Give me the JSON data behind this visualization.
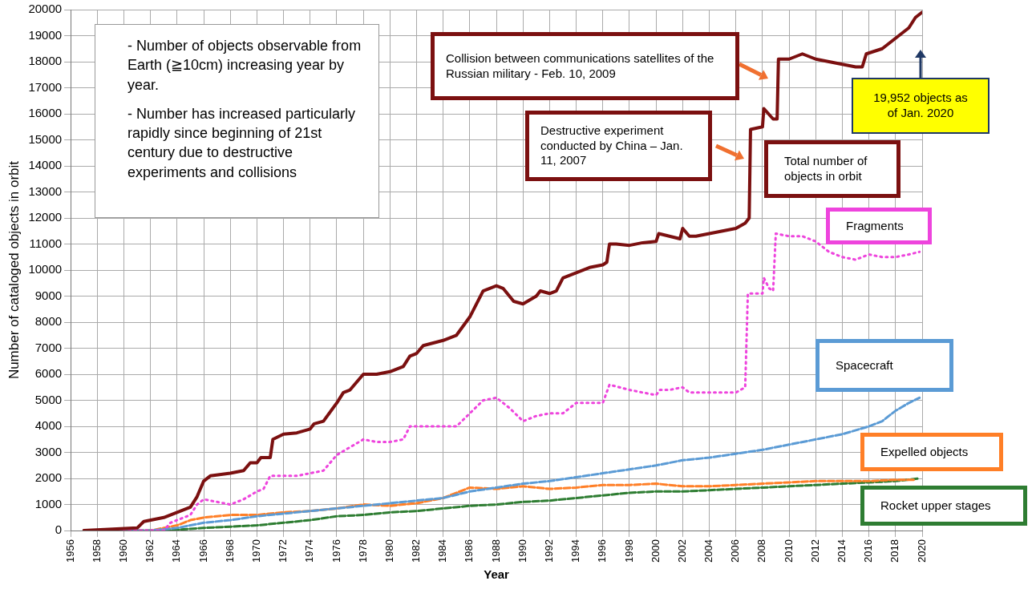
{
  "chart_data": {
    "type": "line",
    "xlabel": "Year",
    "ylabel": "Number of cataloged objects in orbit",
    "xlim": [
      1956,
      2020
    ],
    "xticks": [
      1956,
      1958,
      1960,
      1962,
      1964,
      1966,
      1968,
      1970,
      1972,
      1974,
      1976,
      1978,
      1980,
      1982,
      1984,
      1986,
      1988,
      1990,
      1992,
      1994,
      1996,
      1998,
      2000,
      2002,
      2004,
      2006,
      2008,
      2010,
      2012,
      2014,
      2016,
      2018,
      2020
    ],
    "ylim": [
      0,
      20000
    ],
    "yticks": [
      0,
      1000,
      2000,
      3000,
      4000,
      5000,
      6000,
      7000,
      8000,
      9000,
      10000,
      11000,
      12000,
      13000,
      14000,
      15000,
      16000,
      17000,
      18000,
      19000,
      20000
    ],
    "grid": true,
    "legend": false,
    "marker": "none",
    "series": [
      {
        "name": "Total number of objects in orbit",
        "color": "#7b1010",
        "line_style": "solid",
        "x": [
          1957,
          1961,
          1961.5,
          1963,
          1963.5,
          1965,
          1965.5,
          1966,
          1966.5,
          1968,
          1969,
          1969.5,
          1970,
          1970.3,
          1971,
          1971.2,
          1972,
          1973,
          1974,
          1974.3,
          1975,
          1976,
          1976.5,
          1977,
          1978,
          1979,
          1980,
          1981,
          1981.5,
          1982,
          1982.5,
          1984,
          1985,
          1986,
          1986.3,
          1987,
          1988,
          1988.5,
          1989.3,
          1990,
          1991,
          1991.3,
          1992,
          1992.5,
          1993,
          1994,
          1995,
          1996,
          1996.3,
          1996.5,
          1997,
          1998,
          1999,
          2000,
          2000.2,
          2001,
          2001.8,
          2002,
          2002.5,
          2003,
          2004,
          2005,
          2006,
          2006.7,
          2007,
          2007.1,
          2008,
          2008.1,
          2008.8,
          2009.1,
          2009.2,
          2010,
          2011,
          2012,
          2013,
          2014,
          2015,
          2015.5,
          2015.8,
          2017,
          2018,
          2019,
          2019.5,
          2020
        ],
        "values": [
          0,
          100,
          350,
          500,
          600,
          900,
          1300,
          1900,
          2100,
          2200,
          2300,
          2600,
          2600,
          2800,
          2800,
          3500,
          3700,
          3750,
          3900,
          4100,
          4200,
          4900,
          5300,
          5400,
          6000,
          6000,
          6100,
          6300,
          6700,
          6800,
          7100,
          7300,
          7500,
          8200,
          8500,
          9200,
          9400,
          9300,
          8800,
          8700,
          9000,
          9200,
          9100,
          9200,
          9700,
          9900,
          10100,
          10200,
          10300,
          11000,
          11000,
          10950,
          11050,
          11100,
          11400,
          11300,
          11200,
          11600,
          11300,
          11300,
          11400,
          11500,
          11600,
          11800,
          12000,
          15400,
          15500,
          16200,
          15800,
          15800,
          18100,
          18100,
          18300,
          18100,
          18000,
          17900,
          17800,
          17800,
          18300,
          18500,
          18900,
          19300,
          19700,
          19900
        ]
      },
      {
        "name": "Fragments",
        "color": "#ee44dd",
        "line_style": "dotted",
        "x": [
          1957,
          1963,
          1963.5,
          1965,
          1965.5,
          1966,
          1967,
          1968,
          1969,
          1970,
          1970.5,
          1971,
          1972,
          1973,
          1974,
          1975,
          1976,
          1977,
          1978,
          1979,
          1980,
          1981,
          1981.5,
          1982,
          1985,
          1986,
          1987,
          1988,
          1989,
          1990,
          1991,
          1992,
          1993,
          1994,
          1996,
          1996.5,
          1998,
          2000,
          2000.3,
          2001,
          2002,
          2002.5,
          2004,
          2006,
          2006.7,
          2006.9,
          2008,
          2008.1,
          2008.5,
          2008.8,
          2009,
          2010,
          2011,
          2012,
          2013,
          2014,
          2015,
          2016,
          2017,
          2018,
          2019,
          2019.8
        ],
        "values": [
          0,
          0,
          300,
          600,
          1000,
          1200,
          1100,
          1000,
          1200,
          1500,
          1600,
          2100,
          2100,
          2100,
          2200,
          2300,
          2900,
          3200,
          3500,
          3400,
          3400,
          3500,
          4000,
          4000,
          4000,
          4500,
          5000,
          5100,
          4700,
          4200,
          4400,
          4500,
          4500,
          4900,
          4900,
          5600,
          5400,
          5200,
          5400,
          5400,
          5500,
          5300,
          5300,
          5300,
          5500,
          9100,
          9100,
          9700,
          9300,
          9200,
          11400,
          11300,
          11300,
          11100,
          10700,
          10500,
          10400,
          10600,
          10500,
          10500,
          10600,
          10700
        ]
      },
      {
        "name": "Spacecraft",
        "color": "#5b9bd5",
        "line_style": "dashed",
        "x": [
          1957,
          1962,
          1964,
          1966,
          1968,
          1970,
          1972,
          1974,
          1976,
          1978,
          1980,
          1982,
          1984,
          1986,
          1988,
          1990,
          1992,
          1994,
          1996,
          1998,
          2000,
          2002,
          2004,
          2006,
          2008,
          2010,
          2012,
          2014,
          2016,
          2017,
          2018,
          2019,
          2019.8
        ],
        "values": [
          0,
          0,
          100,
          300,
          400,
          550,
          650,
          750,
          850,
          950,
          1050,
          1150,
          1250,
          1500,
          1650,
          1800,
          1900,
          2050,
          2200,
          2350,
          2500,
          2700,
          2800,
          2950,
          3100,
          3300,
          3500,
          3700,
          4000,
          4200,
          4600,
          4900,
          5100
        ]
      },
      {
        "name": "Expelled objects",
        "color": "#ff7f27",
        "line_style": "dashed",
        "x": [
          1957,
          1962,
          1964,
          1965,
          1966,
          1968,
          1970,
          1972,
          1974,
          1976,
          1978,
          1980,
          1982,
          1984,
          1986,
          1988,
          1990,
          1992,
          1994,
          1996,
          1998,
          2000,
          2002,
          2004,
          2006,
          2008,
          2010,
          2012,
          2014,
          2016,
          2018,
          2019.5
        ],
        "values": [
          0,
          0,
          200,
          400,
          500,
          600,
          600,
          700,
          750,
          850,
          1000,
          950,
          1050,
          1250,
          1650,
          1600,
          1700,
          1600,
          1650,
          1750,
          1750,
          1800,
          1700,
          1700,
          1750,
          1800,
          1850,
          1900,
          1900,
          1900,
          1950,
          1950
        ]
      },
      {
        "name": "Rocket upper stages",
        "color": "#2e7d32",
        "line_style": "dashed",
        "x": [
          1957,
          1963,
          1966,
          1968,
          1970,
          1972,
          1974,
          1976,
          1978,
          1980,
          1982,
          1984,
          1986,
          1988,
          1990,
          1992,
          1994,
          1996,
          1998,
          2000,
          2002,
          2004,
          2006,
          2008,
          2010,
          2012,
          2014,
          2016,
          2018,
          2019.8
        ],
        "values": [
          0,
          0,
          100,
          150,
          200,
          300,
          400,
          550,
          600,
          700,
          750,
          850,
          950,
          1000,
          1100,
          1150,
          1250,
          1350,
          1450,
          1500,
          1500,
          1550,
          1600,
          1650,
          1700,
          1750,
          1800,
          1850,
          1900,
          2000
        ]
      }
    ],
    "annotations": [
      "- Number of objects observable from Earth (≧10cm) increasing year by year.",
      "- Number has increased particularly rapidly since beginning of 21st century due to destructive experiments and collisions",
      "Collision between communications satellites of the Russian military - Feb. 10, 2009",
      "Destructive experiment conducted by China – Jan. 11, 2007",
      "19,952 objects as of Jan. 2020"
    ]
  }
}
